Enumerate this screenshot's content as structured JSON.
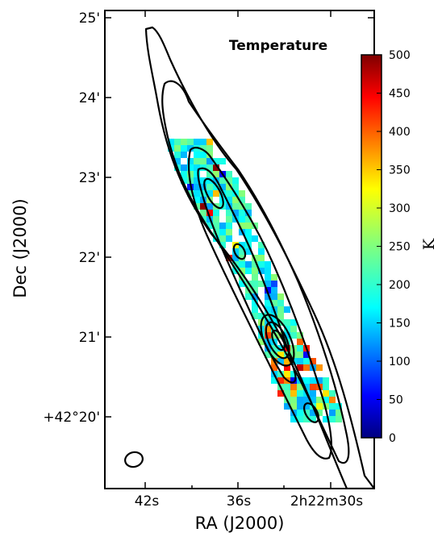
{
  "chart_data": {
    "type": "heatmap",
    "title": "Temperature",
    "xlabel": "RA (J2000)",
    "ylabel": "Dec (J2000)",
    "x_ticks": [
      "42s",
      "36s",
      "2h22m30s"
    ],
    "y_ticks": [
      "+42°20'",
      "21'",
      "22'",
      "23'",
      "24'",
      "25'"
    ],
    "colorbar": {
      "label": "K",
      "range": [
        0,
        500
      ],
      "ticks": [
        "0",
        "50",
        "100",
        "150",
        "200",
        "250",
        "300",
        "350",
        "400",
        "450",
        "500"
      ],
      "colormap": "jet"
    },
    "typical_temperature_K": 200,
    "contours": true,
    "beam_ellipse": true
  },
  "colors": {
    "background": "#ffffff",
    "axis": "#000000",
    "contour": "#000000"
  }
}
